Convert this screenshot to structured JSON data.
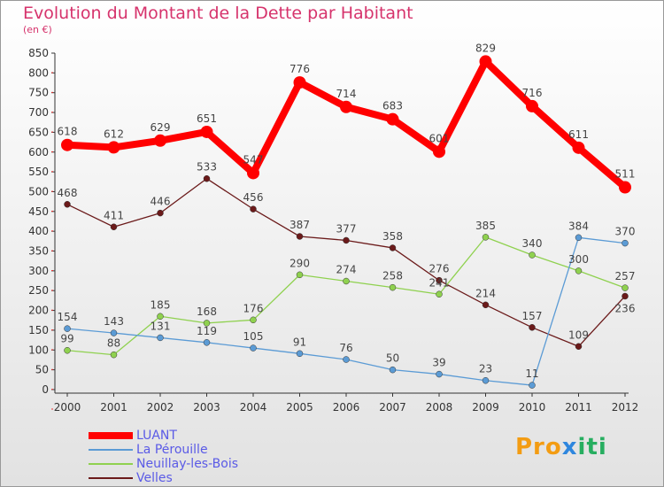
{
  "chart_data": {
    "type": "line",
    "title": "Evolution du Montant de la Dette par Habitant",
    "subtitle": "(en €)",
    "xlabel": "",
    "ylabel": "",
    "x": [
      "2000",
      "2001",
      "2002",
      "2003",
      "2004",
      "2005",
      "2006",
      "2007",
      "2008",
      "2009",
      "2010",
      "2011",
      "2012"
    ],
    "ylim": [
      0,
      850
    ],
    "yticks": [
      0,
      50,
      100,
      150,
      200,
      250,
      300,
      350,
      400,
      450,
      500,
      550,
      600,
      650,
      700,
      750,
      800,
      850
    ],
    "grid": false,
    "legend": "bottom-left",
    "series": [
      {
        "name": "LUANT",
        "color": "#ff0000",
        "values": [
          618,
          612,
          629,
          651,
          547,
          776,
          714,
          683,
          601,
          829,
          716,
          611,
          511
        ]
      },
      {
        "name": "La Pérouille",
        "color": "#5b9bd5",
        "values": [
          154,
          143,
          131,
          119,
          105,
          91,
          76,
          50,
          39,
          23,
          11,
          384,
          370
        ]
      },
      {
        "name": "Neuillay-les-Bois",
        "color": "#8fd14f",
        "values": [
          99,
          88,
          185,
          168,
          176,
          290,
          274,
          258,
          241,
          385,
          340,
          300,
          257
        ]
      },
      {
        "name": "Velles",
        "color": "#6b1a1a",
        "values": [
          468,
          411,
          446,
          533,
          456,
          387,
          377,
          358,
          276,
          214,
          157,
          109,
          236
        ]
      }
    ]
  },
  "logo": "Proxiti"
}
